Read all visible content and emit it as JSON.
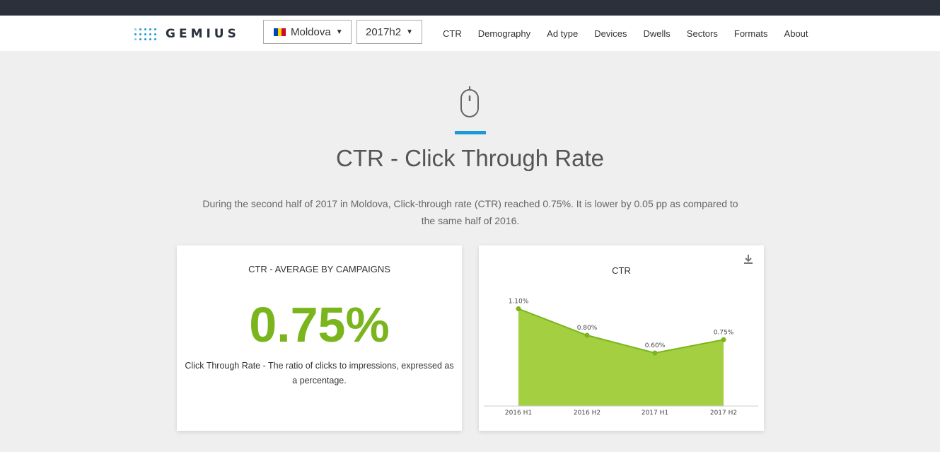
{
  "brand": {
    "name": "GEMIUS"
  },
  "header": {
    "country": "Moldova",
    "period": "2017h2",
    "nav": [
      "CTR",
      "Demography",
      "Ad type",
      "Devices",
      "Dwells",
      "Sectors",
      "Formats",
      "About"
    ]
  },
  "hero": {
    "icon": "mouse-icon",
    "title": "CTR - Click Through Rate",
    "description": "During the second half of 2017 in Moldova, Click-through rate (CTR) reached 0.75%. It is lower by 0.05 pp as compared to the same half of 2016."
  },
  "average_card": {
    "title": "CTR - AVERAGE BY CAMPAIGNS",
    "value": "0.75%",
    "description": "Click Through Rate - The ratio of clicks to impressions, expressed as a percentage."
  },
  "chart_card": {
    "download_icon": "download-icon"
  },
  "colors": {
    "accent": "#1a9ad6",
    "chart_fill": "#a3cf40",
    "chart_line": "#7ab51d",
    "value": "#7ab51d",
    "topbar": "#2a313b"
  },
  "chart_data": {
    "type": "area",
    "title": "CTR",
    "categories": [
      "2016 H1",
      "2016 H2",
      "2017 H1",
      "2017 H2"
    ],
    "values": [
      1.1,
      0.8,
      0.6,
      0.75
    ],
    "labels": [
      "1.10%",
      "0.80%",
      "0.60%",
      "0.75%"
    ],
    "ylim": [
      0,
      1.2
    ],
    "grid": false,
    "legend": "none"
  }
}
